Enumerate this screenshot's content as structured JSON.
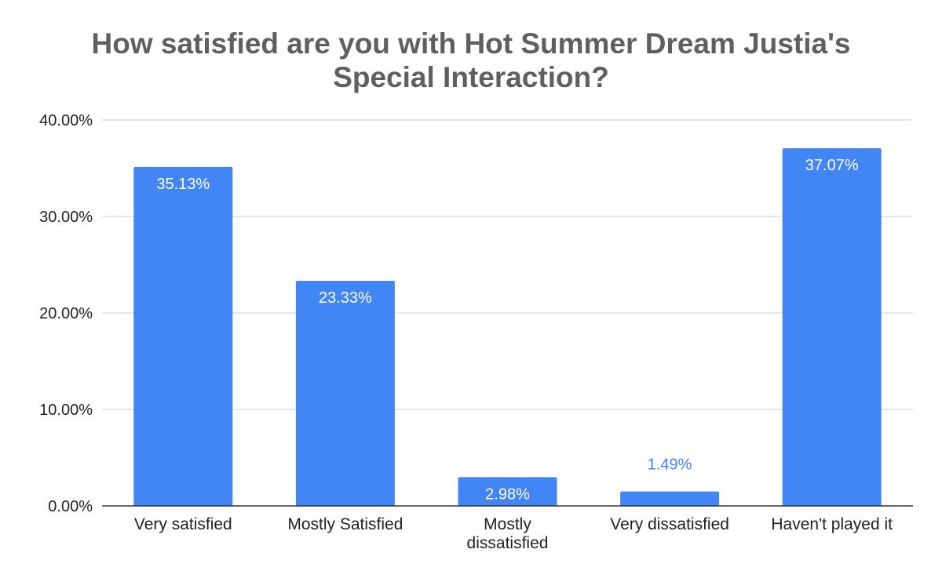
{
  "chart_data": {
    "type": "bar",
    "title_lines": [
      "How satisfied are you with Hot Summer Dream Justia's",
      "Special Interaction?"
    ],
    "categories": [
      [
        "Very satisfied"
      ],
      [
        "Mostly Satisfied"
      ],
      [
        "Mostly",
        "dissatisfied"
      ],
      [
        "Very dissatisfied"
      ],
      [
        "Haven't played it"
      ]
    ],
    "values": [
      35.13,
      23.33,
      2.98,
      1.49,
      37.07
    ],
    "data_labels": [
      "35.13%",
      "23.33%",
      "2.98%",
      "1.49%",
      "37.07%"
    ],
    "y_ticks": [
      0,
      10,
      20,
      30,
      40
    ],
    "y_tick_labels": [
      "0.00%",
      "10.00%",
      "20.00%",
      "30.00%",
      "40.00%"
    ],
    "ylim": [
      0,
      40
    ],
    "grid": true,
    "legend": "none",
    "bar_color": "#4285f4",
    "label_inside_color": "#ffffff",
    "label_outside_color": "#4285f4",
    "grid_color": "#cccccc",
    "axis_color": "#333333",
    "text_color": "#222222",
    "title_color": "#5f5f5f"
  }
}
